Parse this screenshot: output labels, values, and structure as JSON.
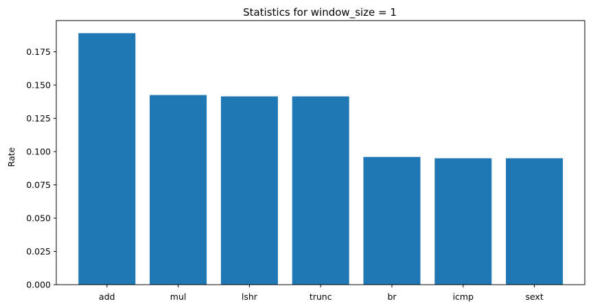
{
  "chart_data": {
    "type": "bar",
    "title": "Statistics for window_size = 1",
    "xlabel": "",
    "ylabel": "Rate",
    "categories": [
      "add",
      "mul",
      "lshr",
      "trunc",
      "br",
      "icmp",
      "sext"
    ],
    "values": [
      0.189,
      0.1425,
      0.1415,
      0.1415,
      0.096,
      0.095,
      0.095
    ],
    "ylim": [
      0,
      0.19846
    ],
    "yticks": [
      "0.000",
      "0.025",
      "0.050",
      "0.075",
      "0.100",
      "0.125",
      "0.150",
      "0.175"
    ],
    "grid": false,
    "bar_color": "#1f77b4"
  }
}
